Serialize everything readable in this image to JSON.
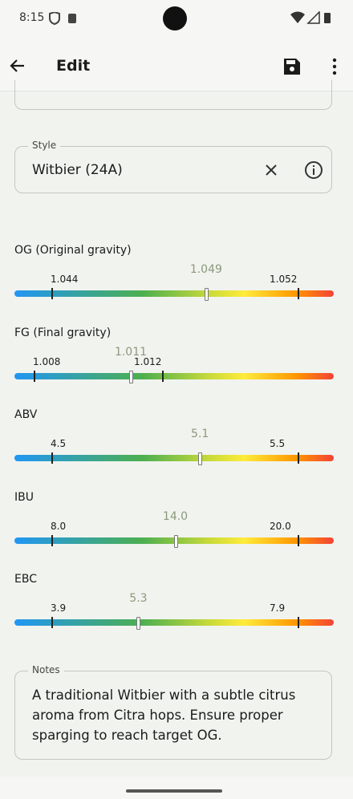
{
  "status_bar": {
    "time": "8:15"
  },
  "app_bar": {
    "title": "Edit"
  },
  "style_field": {
    "label": "Style",
    "value": "Witbier (24A)"
  },
  "gauges": [
    {
      "label": "OG (Original gravity)",
      "min": 1.044,
      "max": 1.052,
      "value": 1.049
    },
    {
      "label": "FG (Final gravity)",
      "min": 1.008,
      "max": 1.012,
      "value": 1.011
    },
    {
      "label": "ABV",
      "min": 4.5,
      "max": 5.5,
      "value": 5.1
    },
    {
      "label": "IBU",
      "min": {
        "value": 8,
        "label": "8.0"
      },
      "max": {
        "value": 20,
        "label": "20.0"
      },
      "value": {
        "value": 14,
        "label": "14.0"
      }
    },
    {
      "label": "EBC",
      "min": 3.9,
      "max": 7.9,
      "value": 5.3
    }
  ],
  "notes_field": {
    "label": "Notes",
    "value": "A traditional Witbier with a subtle citrus aroma from Citra hops. Ensure proper sparging to reach target OG."
  }
}
